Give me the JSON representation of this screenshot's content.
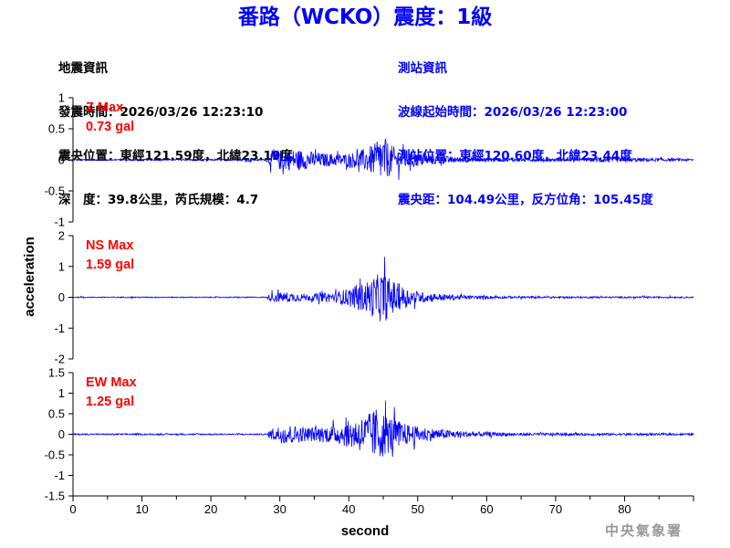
{
  "title": "番路（WCKO）震度：1級",
  "colors": {
    "title": "#0000ff",
    "trace": "#0000ff",
    "max_label": "#ff0000",
    "station_info": "#0000ff",
    "axis": "#000000",
    "agency": "#999999"
  },
  "event_info": {
    "heading": "地震資訊",
    "origin_time": "發震時間：2026/03/26 12:23:10",
    "epicenter": "震央位置：東經121.59度，北緯23.19度",
    "depth_magnitude": "深　度：39.8公里，芮氏規模：4.7"
  },
  "station_info": {
    "heading": "測站資訊",
    "wave_start_time": "波線起始時間：2026/03/26 12:23:00",
    "location": "測站位置：東經120.60度，北緯23.44度",
    "distance_azimuth": "震央距：104.49公里，反方位角：105.45度"
  },
  "agency": "中央氣象署",
  "chart_data": {
    "type": "line",
    "xlabel": "second",
    "ylabel": "acceleration",
    "xlim": [
      0,
      90
    ],
    "xticks": [
      "0",
      "10",
      "20",
      "30",
      "40",
      "50",
      "60",
      "70",
      "80"
    ],
    "panels": [
      {
        "component": "Z",
        "max_label": "Z Max",
        "max_value": "0.73 gal",
        "ylim": [
          -1,
          1
        ],
        "yticks": [
          "-1",
          "-0.5",
          "0",
          "0.5",
          "1"
        ],
        "envelope": {
          "x": [
            0,
            24,
            25.5,
            26.5,
            28,
            29,
            30,
            33,
            36,
            40,
            42,
            44,
            45,
            46,
            48,
            52,
            56,
            60,
            75,
            76,
            90
          ],
          "y": [
            0.02,
            0.02,
            0.06,
            0.02,
            0.03,
            0.3,
            0.3,
            0.3,
            0.2,
            0.18,
            0.3,
            0.5,
            0.7,
            0.45,
            0.25,
            0.15,
            0.08,
            0.05,
            0.04,
            0.08,
            0.03
          ]
        }
      },
      {
        "component": "NS",
        "max_label": "NS Max",
        "max_value": "1.59 gal",
        "ylim": [
          -2,
          2
        ],
        "yticks": [
          "-2",
          "-1",
          "0",
          "1",
          "2"
        ],
        "envelope": {
          "x": [
            0,
            28,
            29,
            31,
            34,
            38,
            42,
            44,
            45,
            46,
            48,
            50,
            54,
            58,
            65,
            90
          ],
          "y": [
            0.03,
            0.03,
            0.3,
            0.3,
            0.2,
            0.3,
            0.8,
            1.3,
            1.55,
            1.1,
            0.6,
            0.35,
            0.18,
            0.1,
            0.06,
            0.04
          ]
        }
      },
      {
        "component": "EW",
        "max_label": "EW Max",
        "max_value": "1.25 gal",
        "ylim": [
          -1.5,
          1.5
        ],
        "yticks": [
          "-1.5",
          "-1",
          "-0.5",
          "0",
          "0.5",
          "1",
          "1.5"
        ],
        "envelope": {
          "x": [
            0,
            28,
            29,
            31,
            34,
            38,
            41,
            43,
            44,
            45,
            46,
            48,
            50,
            54,
            58,
            65,
            90
          ],
          "y": [
            0.03,
            0.03,
            0.3,
            0.45,
            0.3,
            0.4,
            0.7,
            0.9,
            1.2,
            1.0,
            0.8,
            0.5,
            0.35,
            0.2,
            0.12,
            0.06,
            0.04
          ]
        }
      }
    ]
  }
}
